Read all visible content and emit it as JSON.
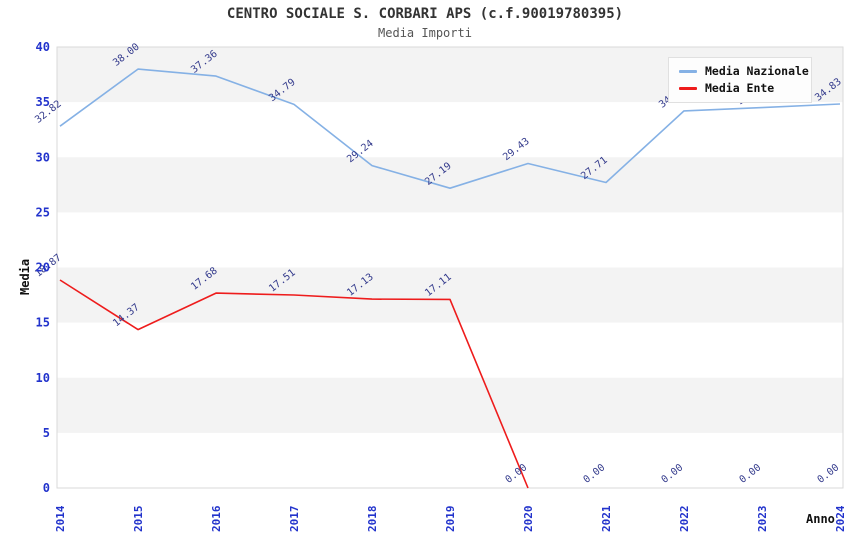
{
  "header": {
    "title": "CENTRO SOCIALE S. CORBARI APS (c.f.90019780395)",
    "subtitle": "Media Importi"
  },
  "legend": {
    "items": [
      {
        "label": "Media Nazionale",
        "color": "#85b1e5"
      },
      {
        "label": "Media Ente",
        "color": "#ee1c1c"
      }
    ]
  },
  "axes": {
    "y_title": "Media",
    "x_title": "Anno"
  },
  "colors": {
    "tick_label": "#2233cc",
    "data_label": "#333a8c",
    "band": "#f3f3f3",
    "plot_border": "#d9d9d9",
    "plot_bg": "#ffffff"
  },
  "chart_data": {
    "type": "line",
    "title": "CENTRO SOCIALE S. CORBARI APS (c.f.90019780395)",
    "subtitle": "Media Importi",
    "xlabel": "Anno",
    "ylabel": "Media",
    "ylim": [
      0,
      40
    ],
    "ytick_step": 5,
    "grid": "alternating-bands",
    "legend_position": "top-right",
    "categories": [
      "2014",
      "2015",
      "2016",
      "2017",
      "2018",
      "2019",
      "2020",
      "2021",
      "2022",
      "2023",
      "2024"
    ],
    "series": [
      {
        "name": "Media Nazionale",
        "color": "#85b1e5",
        "values": [
          32.82,
          38.0,
          37.36,
          34.79,
          29.24,
          27.19,
          29.43,
          27.71,
          34.2,
          34.5,
          34.83
        ],
        "labels": [
          "32.82",
          "38.00",
          "37.36",
          "34.79",
          "29.24",
          "27.19",
          "29.43",
          "27.71",
          "34.20",
          "34.50",
          "34.83"
        ],
        "labels_hidden_by_legend": [
          8,
          9
        ]
      },
      {
        "name": "Media Ente",
        "color": "#ee1c1c",
        "values": [
          18.87,
          14.37,
          17.68,
          17.51,
          17.13,
          17.11,
          0,
          0,
          0,
          0,
          0
        ],
        "labels": [
          "18.87",
          "14.37",
          "17.68",
          "17.51",
          "17.13",
          "17.11",
          "0.00",
          "0.00",
          "0.00",
          "0.00",
          "0.00"
        ],
        "line_stops_after_index": 6
      }
    ]
  }
}
